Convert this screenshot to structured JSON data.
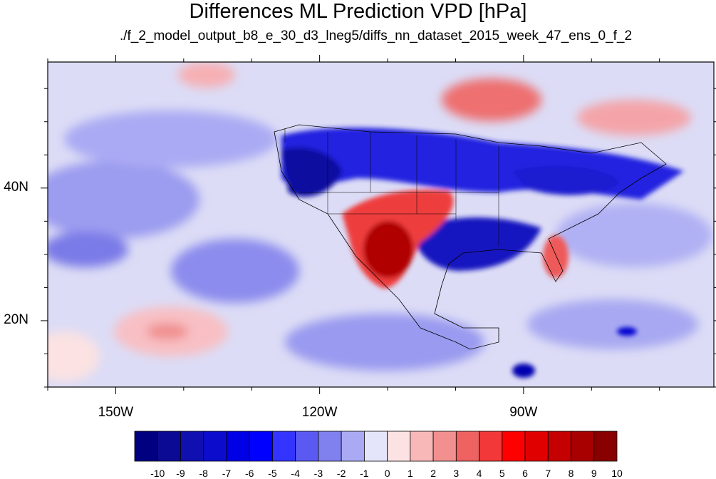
{
  "title": "Differences ML Prediction VPD [hPa]",
  "subtitle": "./f_2_model_output_b8_e_30_d3_lneg5/diffs_nn_dataset_2015_week_47_ens_0_f_2",
  "map": {
    "lon_range": [
      -160,
      -62
    ],
    "lat_range": [
      10,
      59
    ],
    "lon_labels": [
      {
        "lon": -150,
        "label": "150W"
      },
      {
        "lon": -120,
        "label": "120W"
      },
      {
        "lon": -90,
        "label": "90W"
      }
    ],
    "lat_labels": [
      {
        "lat": 40,
        "label": "40N"
      },
      {
        "lat": 20,
        "label": "20N"
      }
    ]
  },
  "colorbar": {
    "labels": [
      "-10",
      "-9",
      "-8",
      "-7",
      "-6",
      "-5",
      "-4",
      "-3",
      "-2",
      "-1",
      "0",
      "1",
      "2",
      "3",
      "4",
      "5",
      "6",
      "7",
      "8",
      "9",
      "10"
    ],
    "colors": [
      "#000080",
      "#0a0a94",
      "#1010b0",
      "#0c0ccc",
      "#0000e6",
      "#0000ff",
      "#3434ff",
      "#5a5af2",
      "#8080ee",
      "#aaaaf4",
      "#e4e4fa",
      "#fce2e2",
      "#f8b8b8",
      "#f29090",
      "#ee6262",
      "#f23838",
      "#ff0000",
      "#e00000",
      "#c40000",
      "#a80000",
      "#880000"
    ]
  },
  "colors": {
    "ocean_base": "#dcdcf6",
    "land_outline": "#000000"
  }
}
